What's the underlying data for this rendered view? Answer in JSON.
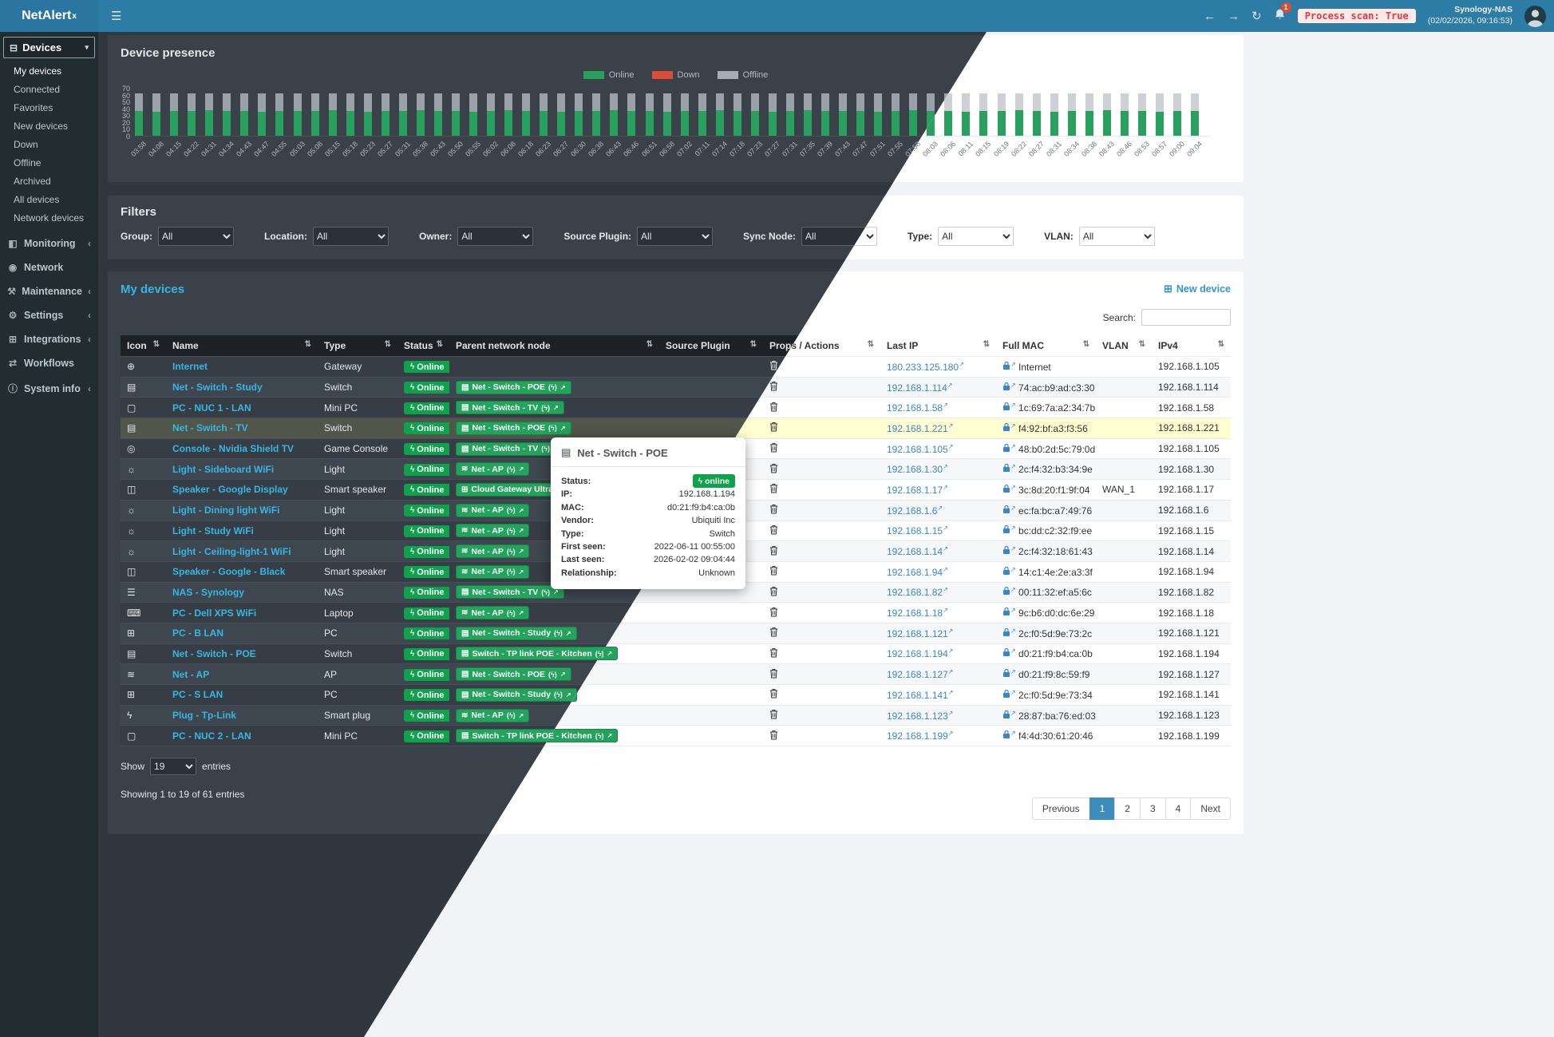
{
  "navbar": {
    "logo": "NetAlert",
    "logo_sup": "x",
    "notification_count": "1",
    "process_scan": "Process scan: True",
    "host": "Synology-NAS",
    "timestamp": "(02/02/2026, 09:16:53)"
  },
  "sidebar": {
    "devices_label": "Devices",
    "device_items": [
      {
        "label": "My devices",
        "active": true
      },
      {
        "label": "Connected",
        "active": false
      },
      {
        "label": "Favorites",
        "active": false
      },
      {
        "label": "New devices",
        "active": false
      },
      {
        "label": "Down",
        "active": false
      },
      {
        "label": "Offline",
        "active": false
      },
      {
        "label": "Archived",
        "active": false
      },
      {
        "label": "All devices",
        "active": false
      },
      {
        "label": "Network devices",
        "active": false
      }
    ],
    "sections": [
      {
        "label": "Monitoring",
        "icon": "monitoring",
        "chevron": true
      },
      {
        "label": "Network",
        "icon": "network",
        "chevron": false
      },
      {
        "label": "Maintenance",
        "icon": "maintenance",
        "chevron": true
      },
      {
        "label": "Settings",
        "icon": "settings",
        "chevron": true
      },
      {
        "label": "Integrations",
        "icon": "integrations",
        "chevron": true
      },
      {
        "label": "Workflows",
        "icon": "workflows",
        "chevron": false
      },
      {
        "label": "System info",
        "icon": "systeminfo",
        "chevron": true
      }
    ],
    "icon_glyphs": {
      "devices": "⊟",
      "monitoring": "◧",
      "network": "◉",
      "maintenance": "⚒",
      "settings": "⚙",
      "integrations": "⊞",
      "workflows": "⇄",
      "systeminfo": "ⓘ"
    }
  },
  "chart_data": {
    "type": "bar",
    "stacked": true,
    "title": "Device presence",
    "legend_position": "top-center",
    "ylim": [
      0,
      70
    ],
    "yticks": [
      0,
      10,
      20,
      30,
      40,
      50,
      60,
      70
    ],
    "x": [
      "03:58",
      "04:08",
      "04:15",
      "04:22",
      "04:31",
      "04:34",
      "04:43",
      "04:47",
      "04:55",
      "05:03",
      "05:08",
      "05:15",
      "05:18",
      "05:23",
      "05:27",
      "05:31",
      "05:38",
      "05:43",
      "05:50",
      "05:55",
      "06:02",
      "06:08",
      "06:18",
      "06:23",
      "06:27",
      "06:30",
      "06:38",
      "06:43",
      "06:46",
      "06:51",
      "06:58",
      "07:02",
      "07:11",
      "07:14",
      "07:18",
      "07:23",
      "07:27",
      "07:31",
      "07:35",
      "07:39",
      "07:43",
      "07:47",
      "07:51",
      "07:55",
      "07:58",
      "08:03",
      "08:06",
      "08:11",
      "08:15",
      "08:19",
      "08:22",
      "08:27",
      "08:31",
      "08:34",
      "08:38",
      "08:43",
      "08:46",
      "08:53",
      "08:57",
      "09:00",
      "09:04"
    ],
    "series": [
      {
        "name": "Online",
        "color": "#2aa05f",
        "values": [
          36,
          35,
          36,
          36,
          37,
          36,
          36,
          35,
          36,
          36,
          36,
          37,
          36,
          35,
          36,
          36,
          37,
          36,
          36,
          35,
          36,
          37,
          36,
          36,
          35,
          36,
          36,
          37,
          36,
          36,
          35,
          36,
          36,
          37,
          36,
          36,
          35,
          36,
          37,
          36,
          36,
          36,
          35,
          36,
          37,
          36,
          36,
          35,
          36,
          36,
          37,
          36,
          35,
          36,
          36,
          37,
          36,
          36,
          35,
          36,
          36
        ]
      },
      {
        "name": "Down",
        "color": "#dd4b39",
        "values_constant": 0
      },
      {
        "name": "Offline",
        "color": "#a8adb3",
        "values": [
          26,
          27,
          26,
          26,
          25,
          26,
          26,
          27,
          26,
          26,
          26,
          25,
          26,
          27,
          26,
          26,
          25,
          26,
          26,
          27,
          26,
          25,
          26,
          26,
          27,
          26,
          26,
          25,
          26,
          26,
          27,
          26,
          26,
          25,
          26,
          26,
          27,
          26,
          25,
          26,
          26,
          26,
          27,
          26,
          25,
          26,
          26,
          27,
          26,
          26,
          25,
          26,
          27,
          26,
          26,
          25,
          26,
          26,
          27,
          26,
          26
        ]
      }
    ]
  },
  "filters": {
    "title": "Filters",
    "groups": [
      {
        "label": "Group:",
        "value": "All"
      },
      {
        "label": "Location:",
        "value": "All"
      },
      {
        "label": "Owner:",
        "value": "All"
      },
      {
        "label": "Source Plugin:",
        "value": "All"
      },
      {
        "label": "Sync Node:",
        "value": "All"
      },
      {
        "label": "Type:",
        "value": "All"
      },
      {
        "label": "VLAN:",
        "value": "All"
      }
    ]
  },
  "devices_panel": {
    "title": "My devices",
    "new_device": "New device",
    "search_label": "Search:",
    "search_value": "",
    "show_label": "Show",
    "entries_value": "19",
    "entries_label": "entries",
    "summary": "Showing 1 to 19 of 61 entries",
    "active_page": "1",
    "pagination": [
      "Previous",
      "1",
      "2",
      "3",
      "4",
      "Next"
    ],
    "table": {
      "columns": [
        "Icon",
        "Name",
        "Type",
        "Status",
        "Parent network node",
        "Source Plugin",
        "Props / Actions",
        "Last IP",
        "Full MAC",
        "VLAN",
        "IPv4"
      ],
      "rows": [
        {
          "icon": "globe",
          "name": "Internet",
          "type": "Gateway",
          "status": "Online",
          "parent": null,
          "source_plugin": "",
          "last_ip": "180.233.125.180",
          "mac": "Internet",
          "vlan": "",
          "ipv4": "192.168.1.105"
        },
        {
          "icon": "switch",
          "name": "Net - Switch - Study",
          "type": "Switch",
          "status": "Online",
          "parent": {
            "icon": "switch",
            "label": "Net - Switch - POE"
          },
          "source_plugin": "",
          "last_ip": "192.168.1.114",
          "mac": "74:ac:b9:ad:c3:30",
          "vlan": "",
          "ipv4": "192.168.1.114"
        },
        {
          "icon": "minipc",
          "name": "PC - NUC 1 - LAN",
          "type": "Mini PC",
          "status": "Online",
          "parent": {
            "icon": "switch",
            "label": "Net - Switch - TV"
          },
          "source_plugin": "",
          "last_ip": "192.168.1.58",
          "mac": "1c:69:7a:a2:34:7b",
          "vlan": "",
          "ipv4": "192.168.1.58"
        },
        {
          "icon": "switch",
          "name": "Net - Switch - TV",
          "type": "Switch",
          "status": "Online",
          "parent": {
            "icon": "switch",
            "label": "Net - Switch - POE"
          },
          "source_plugin": "",
          "last_ip": "192.168.1.221",
          "mac": "f4:92:bf:a3:f3:56",
          "vlan": "",
          "ipv4": "192.168.1.221",
          "highlighted": true
        },
        {
          "icon": "gamepad",
          "name": "Console - Nvidia Shield TV",
          "type": "Game Console",
          "status": "Online",
          "parent": {
            "icon": "switch",
            "label": "Net - Switch - TV"
          },
          "source_plugin": "",
          "last_ip": "192.168.1.105",
          "mac": "48:b0:2d:5c:79:0d",
          "vlan": "",
          "ipv4": "192.168.1.105"
        },
        {
          "icon": "light",
          "name": "Light - Sideboard WiFi",
          "type": "Light",
          "status": "Online",
          "parent": {
            "icon": "wifi",
            "label": "Net - AP"
          },
          "source_plugin": "",
          "last_ip": "192.168.1.30",
          "mac": "2c:f4:32:b3:34:9e",
          "vlan": "",
          "ipv4": "192.168.1.30"
        },
        {
          "icon": "tablet",
          "name": "Speaker - Google Display",
          "type": "Smart speaker",
          "status": "Online",
          "parent": {
            "icon": "sitemap",
            "label": "Cloud Gateway Ultra"
          },
          "source_plugin": "",
          "last_ip": "192.168.1.17",
          "mac": "3c:8d:20:f1:9f:04",
          "vlan": "WAN_1",
          "ipv4": "192.168.1.17"
        },
        {
          "icon": "light",
          "name": "Light - Dining light WiFi",
          "type": "Light",
          "status": "Online",
          "parent": {
            "icon": "wifi",
            "label": "Net - AP"
          },
          "source_plugin": "",
          "last_ip": "192.168.1.6",
          "mac": "ec:fa:bc:a7:49:76",
          "vlan": "",
          "ipv4": "192.168.1.6"
        },
        {
          "icon": "light",
          "name": "Light - Study WiFi",
          "type": "Light",
          "status": "Online",
          "parent": {
            "icon": "wifi",
            "label": "Net - AP"
          },
          "source_plugin": "",
          "last_ip": "192.168.1.15",
          "mac": "bc:dd:c2:32:f9:ee",
          "vlan": "",
          "ipv4": "192.168.1.15"
        },
        {
          "icon": "light",
          "name": "Light - Ceiling-light-1 WiFi",
          "type": "Light",
          "status": "Online",
          "parent": {
            "icon": "wifi",
            "label": "Net - AP"
          },
          "source_plugin": "",
          "last_ip": "192.168.1.14",
          "mac": "2c:f4:32:18:61:43",
          "vlan": "",
          "ipv4": "192.168.1.14"
        },
        {
          "icon": "speaker",
          "name": "Speaker - Google - Black",
          "type": "Smart speaker",
          "status": "Online",
          "parent": {
            "icon": "wifi",
            "label": "Net - AP"
          },
          "source_plugin": "",
          "last_ip": "192.168.1.94",
          "mac": "14:c1:4e:2e:a3:3f",
          "vlan": "",
          "ipv4": "192.168.1.94"
        },
        {
          "icon": "nas",
          "name": "NAS - Synology",
          "type": "NAS",
          "status": "Online",
          "parent": {
            "icon": "switch",
            "label": "Net - Switch - TV"
          },
          "source_plugin": "",
          "last_ip": "192.168.1.82",
          "mac": "00:11:32:ef:a5:6c",
          "vlan": "",
          "ipv4": "192.168.1.82"
        },
        {
          "icon": "laptop",
          "name": "PC - Dell XPS WiFi",
          "type": "Laptop",
          "status": "Online",
          "parent": {
            "icon": "wifi",
            "label": "Net - AP"
          },
          "source_plugin": "",
          "last_ip": "192.168.1.18",
          "mac": "9c:b6:d0:dc:6e:29",
          "vlan": "",
          "ipv4": "192.168.1.18"
        },
        {
          "icon": "pc",
          "name": "PC - B LAN",
          "type": "PC",
          "status": "Online",
          "parent": {
            "icon": "switch",
            "label": "Net - Switch - Study"
          },
          "source_plugin": "",
          "last_ip": "192.168.1.121",
          "mac": "2c:f0:5d:9e:73:2c",
          "vlan": "",
          "ipv4": "192.168.1.121"
        },
        {
          "icon": "switch",
          "name": "Net - Switch - POE",
          "type": "Switch",
          "status": "Online",
          "parent": {
            "icon": "switch",
            "label": "Switch - TP link POE - Kitchen"
          },
          "source_plugin": "",
          "last_ip": "192.168.1.194",
          "mac": "d0:21:f9:b4:ca:0b",
          "vlan": "",
          "ipv4": "192.168.1.194"
        },
        {
          "icon": "wifi",
          "name": "Net - AP",
          "type": "AP",
          "status": "Online",
          "parent": {
            "icon": "switch",
            "label": "Net - Switch - POE"
          },
          "source_plugin": "",
          "last_ip": "192.168.1.127",
          "mac": "d0:21:f9:8c:59:f9",
          "vlan": "",
          "ipv4": "192.168.1.127"
        },
        {
          "icon": "pc",
          "name": "PC - S LAN",
          "type": "PC",
          "status": "Online",
          "parent": {
            "icon": "switch",
            "label": "Net - Switch - Study"
          },
          "source_plugin": "",
          "last_ip": "192.168.1.141",
          "mac": "2c:f0:5d:9e:73:34",
          "vlan": "",
          "ipv4": "192.168.1.141"
        },
        {
          "icon": "plug",
          "name": "Plug - Tp-Link",
          "type": "Smart plug",
          "status": "Online",
          "parent": {
            "icon": "wifi",
            "label": "Net - AP"
          },
          "source_plugin": "",
          "last_ip": "192.168.1.123",
          "mac": "28:87:ba:76:ed:03",
          "vlan": "",
          "ipv4": "192.168.1.123"
        },
        {
          "icon": "minipc",
          "name": "PC - NUC 2 - LAN",
          "type": "Mini PC",
          "status": "Online",
          "parent": {
            "icon": "switch",
            "label": "Switch - TP link POE - Kitchen"
          },
          "source_plugin": "",
          "last_ip": "192.168.1.199",
          "mac": "f4:4d:30:61:20:46",
          "vlan": "",
          "ipv4": "192.168.1.199"
        }
      ]
    }
  },
  "tooltip": {
    "title": "Net - Switch - POE",
    "fields": [
      {
        "label": "Status:",
        "value": "online",
        "pill": true
      },
      {
        "label": "IP:",
        "value": "192.168.1.194"
      },
      {
        "label": "MAC:",
        "value": "d0:21:f9:b4:ca:0b"
      },
      {
        "label": "Vendor:",
        "value": "Ubiquiti Inc"
      },
      {
        "label": "Type:",
        "value": "Switch"
      },
      {
        "label": "First seen:",
        "value": "2022-06-11 00:55:00"
      },
      {
        "label": "Last seen:",
        "value": "2026-02-02 09:04:44"
      },
      {
        "label": "Relationship:",
        "value": "Unknown"
      }
    ]
  },
  "icon_glyphs": {
    "globe": "⊕",
    "switch": "▤",
    "minipc": "▢",
    "gamepad": "◎",
    "light": "☼",
    "tablet": "◫",
    "speaker": "◫",
    "nas": "☰",
    "laptop": "⌨",
    "pc": "⊞",
    "wifi": "≋",
    "plug": "ϟ",
    "sitemap": "⊞",
    "tv": "⊡"
  },
  "colors": {
    "navbar": "#2d7ca6",
    "sidebar": "#222d32",
    "online_green": "#2aa05f",
    "status_green": "#0fa24d",
    "down_red": "#dd4b39",
    "accent_cyan": "#38b6e3",
    "active_page_blue": "#3c8dbc",
    "highlight_yellow": "#ffffd1"
  }
}
